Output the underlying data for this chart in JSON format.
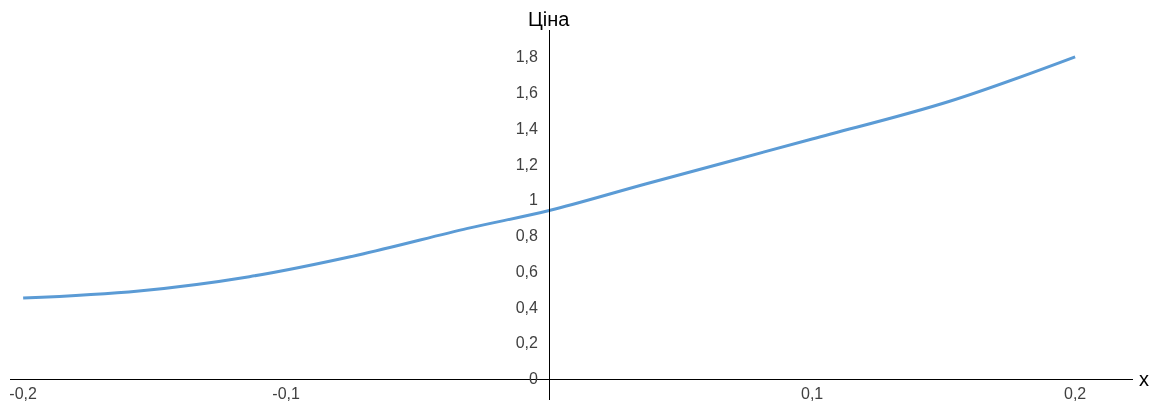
{
  "chart_data": {
    "type": "line",
    "xlabel": "x",
    "ylabel": "Ціна",
    "x": [
      -0.2,
      -0.156,
      -0.114,
      -0.073,
      -0.031,
      0,
      0.037,
      0.1,
      0.152,
      0.2
    ],
    "series": [
      {
        "color": "#5b9bd5",
        "values": [
          0.45,
          0.49,
          0.57,
          0.69,
          0.84,
          0.94,
          1.09,
          1.34,
          1.55,
          1.8
        ]
      }
    ],
    "xlim": [
      -0.205,
      0.222
    ],
    "ylim": [
      -0.12,
      1.95
    ],
    "xticks": [
      {
        "value": -0.2,
        "label": "-0,2"
      },
      {
        "value": -0.1,
        "label": "-0,1"
      },
      {
        "value": 0.1,
        "label": "0,1"
      },
      {
        "value": 0.2,
        "label": "0,2"
      }
    ],
    "yticks": [
      0,
      {
        "value": 0.2,
        "label": "0,2"
      },
      {
        "value": 0.4,
        "label": "0,4"
      },
      {
        "value": 0.6,
        "label": "0,6"
      },
      {
        "value": 0.8,
        "label": "0,8"
      },
      1,
      {
        "value": 1.2,
        "label": "1,2"
      },
      {
        "value": 1.4,
        "label": "1,4"
      },
      {
        "value": 1.6,
        "label": "1,6"
      },
      {
        "value": 1.8,
        "label": "1,8"
      }
    ],
    "marker": "none",
    "line_style": "solid"
  }
}
